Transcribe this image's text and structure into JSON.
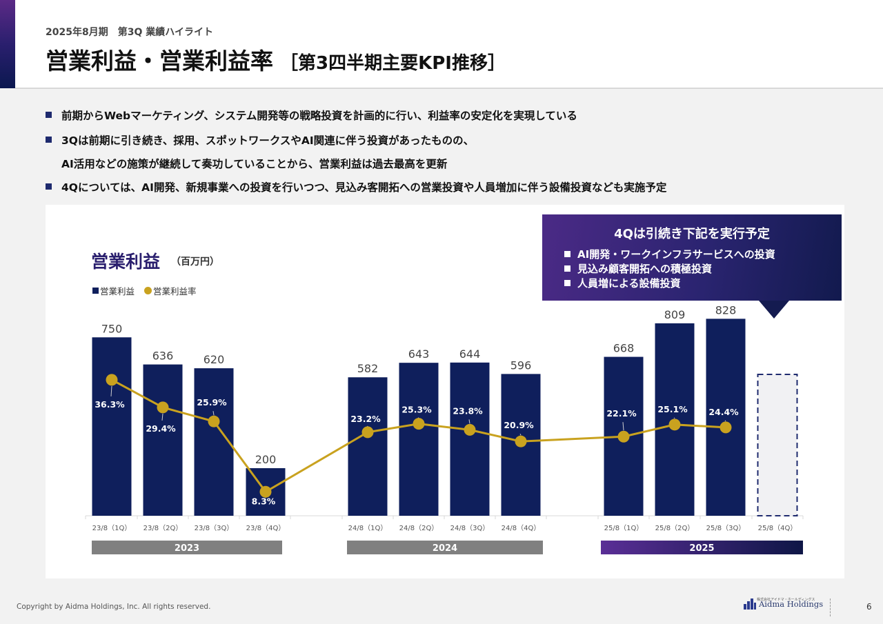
{
  "header": {
    "subtitle": "2025年8月期　第3Q 業績ハイライト",
    "title": "営業利益・営業利益率",
    "title_bracket": "［第3四半期主要KPI推移］"
  },
  "bullets": [
    "前期からWebマーケティング、システム開発等の戦略投資を計画的に行い、利益率の安定化を実現している",
    "3Qは前期に引き続き、採用、スポットワークスやAI関連に伴う投資があったものの、",
    "AI活用などの施策が継続して奏功していることから、営業利益は過去最高を更新",
    "4Qについては、AI開発、新規事業への投資を行いつつ、見込み客開拓への営業投資や人員増加に伴う設備投資なども実施予定"
  ],
  "callout": {
    "title": "4Qは引続き下記を実行予定",
    "items": [
      "AI開発・ワークインフラサービスへの投資",
      "見込み顧客開拓への積極投資",
      "人員増による設備投資"
    ]
  },
  "chart_data": {
    "type": "bar",
    "title": "営業利益",
    "unit": "（百万円）",
    "categories": [
      "23/8（1Q）",
      "23/8（2Q）",
      "23/8（3Q）",
      "23/8（4Q）",
      "24/8（1Q）",
      "24/8（2Q）",
      "24/8（3Q）",
      "24/8（4Q）",
      "25/8（1Q）",
      "25/8（2Q）",
      "25/8（3Q）",
      "25/8（4Q）"
    ],
    "series": [
      {
        "name": "営業利益",
        "type": "bar",
        "values": [
          750,
          636,
          620,
          200,
          582,
          643,
          644,
          596,
          668,
          809,
          828,
          null
        ],
        "labels": [
          "750",
          "636",
          "620",
          "200",
          "582",
          "643",
          "644",
          "596",
          "668",
          "809",
          "828",
          ""
        ]
      },
      {
        "name": "営業利益率",
        "type": "line",
        "values": [
          36.3,
          29.4,
          25.9,
          8.3,
          23.2,
          25.3,
          23.8,
          20.9,
          22.1,
          25.1,
          24.4,
          null
        ],
        "labels": [
          "36.3%",
          "29.4%",
          "25.9%",
          "8.3%",
          "23.2%",
          "25.3%",
          "23.8%",
          "20.9%",
          "22.1%",
          "25.1%",
          "24.4%",
          ""
        ]
      }
    ],
    "planned_category": "25/8（4Q）",
    "groups": [
      {
        "label": "2023",
        "from": 0,
        "to": 3,
        "color": "#808080"
      },
      {
        "label": "2024",
        "from": 4,
        "to": 7,
        "color": "#808080"
      },
      {
        "label": "2025",
        "from": 8,
        "to": 11,
        "color": "#4a2a86"
      }
    ],
    "colors": {
      "bar": "#0f1f5c",
      "line": "#c9a21f",
      "planned_fill": "#f1f1f3",
      "planned_border": "#1e2a6e"
    },
    "legend_position": "top-left"
  },
  "footer": {
    "copyright": "Copyright by Aidma Holdings, Inc. All rights reserved.",
    "logo_small": "株式会社アイドマ・ホールディングス",
    "logo": "Aidma Holdings",
    "page": "6"
  }
}
